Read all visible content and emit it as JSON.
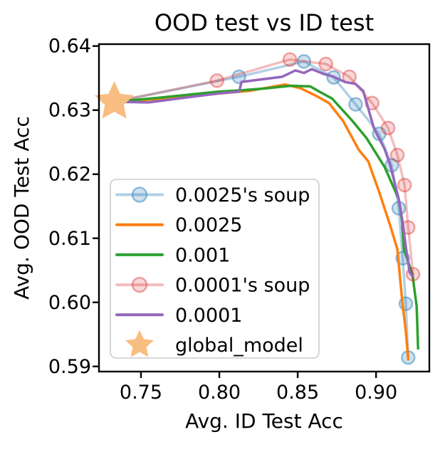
{
  "chart_data": {
    "type": "line",
    "title": "OOD test vs ID test",
    "xlabel": "Avg. ID Test Acc",
    "ylabel": "Avg. OOD Test Acc",
    "xlim": [
      0.7232,
      0.934
    ],
    "ylim": [
      0.5892,
      0.6403
    ],
    "grid": false,
    "xticks": {
      "values": [
        0.75,
        0.8,
        0.85,
        0.9
      ],
      "labels": [
        "0.75",
        "0.80",
        "0.85",
        "0.90"
      ]
    },
    "yticks": {
      "values": [
        0.59,
        0.6,
        0.61,
        0.62,
        0.63,
        0.64
      ],
      "labels": [
        "0.59",
        "0.60",
        "0.61",
        "0.62",
        "0.63",
        "0.64"
      ]
    },
    "legend": {
      "position": "lower left inside",
      "border_color": "#cccccc",
      "background": "#ffffff"
    },
    "series": [
      {
        "name": "0.0025's soup",
        "kind": "line+marker",
        "color": "rgba(31,119,180,0.35)",
        "marker_fill": "rgba(31,119,180,0.22)",
        "marker_edge": "rgba(31,119,180,0.45)",
        "points": [
          [
            0.733,
            0.6313
          ],
          [
            0.8125,
            0.6352
          ],
          [
            0.854,
            0.6376
          ],
          [
            0.873,
            0.6351
          ],
          [
            0.887,
            0.6309
          ],
          [
            0.902,
            0.6263
          ],
          [
            0.91,
            0.6214
          ],
          [
            0.9145,
            0.6147
          ],
          [
            0.917,
            0.6069
          ],
          [
            0.919,
            0.5998
          ],
          [
            0.9205,
            0.5914
          ]
        ]
      },
      {
        "name": "0.0025",
        "kind": "line",
        "color": "#ff7f0e",
        "points": [
          [
            0.733,
            0.6313
          ],
          [
            0.76,
            0.6317
          ],
          [
            0.78,
            0.6321
          ],
          [
            0.8,
            0.6326
          ],
          [
            0.819,
            0.633
          ],
          [
            0.842,
            0.634
          ],
          [
            0.852,
            0.6334
          ],
          [
            0.862,
            0.6322
          ],
          [
            0.87,
            0.6311
          ],
          [
            0.879,
            0.6283
          ],
          [
            0.889,
            0.6238
          ],
          [
            0.895,
            0.622
          ],
          [
            0.902,
            0.6172
          ],
          [
            0.909,
            0.612
          ],
          [
            0.9136,
            0.6083
          ],
          [
            0.9168,
            0.6
          ],
          [
            0.919,
            0.5955
          ],
          [
            0.9205,
            0.5911
          ]
        ]
      },
      {
        "name": "0.001",
        "kind": "line",
        "color": "#2ca02c",
        "points": [
          [
            0.733,
            0.6313
          ],
          [
            0.76,
            0.6319
          ],
          [
            0.78,
            0.6324
          ],
          [
            0.8,
            0.6329
          ],
          [
            0.8145,
            0.6331
          ],
          [
            0.83,
            0.6334
          ],
          [
            0.8455,
            0.6338
          ],
          [
            0.858,
            0.6337
          ],
          [
            0.8645,
            0.6328
          ],
          [
            0.872,
            0.6318
          ],
          [
            0.885,
            0.6283
          ],
          [
            0.894,
            0.6256
          ],
          [
            0.9055,
            0.6211
          ],
          [
            0.9145,
            0.6161
          ],
          [
            0.9168,
            0.6124
          ],
          [
            0.9177,
            0.6083
          ],
          [
            0.9232,
            0.6044
          ],
          [
            0.9259,
            0.5994
          ],
          [
            0.9268,
            0.5928
          ]
        ]
      },
      {
        "name": "0.0001's soup",
        "kind": "line+marker",
        "color": "rgba(214,39,40,0.30)",
        "marker_fill": "rgba(214,39,40,0.18)",
        "marker_edge": "rgba(214,39,40,0.40)",
        "points": [
          [
            0.733,
            0.6313
          ],
          [
            0.7985,
            0.6346
          ],
          [
            0.845,
            0.6379
          ],
          [
            0.868,
            0.6372
          ],
          [
            0.883,
            0.6352
          ],
          [
            0.8975,
            0.6311
          ],
          [
            0.9077,
            0.6272
          ],
          [
            0.9136,
            0.623
          ],
          [
            0.9182,
            0.6183
          ],
          [
            0.9205,
            0.6117
          ],
          [
            0.9236,
            0.6044
          ]
        ]
      },
      {
        "name": "0.0001",
        "kind": "line",
        "color": "#9467bd",
        "points": [
          [
            0.733,
            0.6313
          ],
          [
            0.755,
            0.6312
          ],
          [
            0.78,
            0.632
          ],
          [
            0.8,
            0.6326
          ],
          [
            0.8127,
            0.6329
          ],
          [
            0.8141,
            0.6344
          ],
          [
            0.827,
            0.6348
          ],
          [
            0.84,
            0.6352
          ],
          [
            0.8486,
            0.6362
          ],
          [
            0.854,
            0.6358
          ],
          [
            0.859,
            0.6364
          ],
          [
            0.866,
            0.6357
          ],
          [
            0.873,
            0.6352
          ],
          [
            0.88,
            0.6344
          ],
          [
            0.8868,
            0.6341
          ],
          [
            0.8918,
            0.633
          ],
          [
            0.8986,
            0.6272
          ],
          [
            0.9055,
            0.6239
          ],
          [
            0.909,
            0.6214
          ],
          [
            0.9114,
            0.6191
          ],
          [
            0.9145,
            0.6161
          ],
          [
            0.9168,
            0.6128
          ],
          [
            0.919,
            0.6087
          ],
          [
            0.9214,
            0.6047
          ],
          [
            0.9232,
            0.6041
          ]
        ]
      },
      {
        "name": "global_model",
        "kind": "star",
        "color": "#f8bd80",
        "points": [
          [
            0.733,
            0.6313
          ]
        ]
      }
    ]
  }
}
